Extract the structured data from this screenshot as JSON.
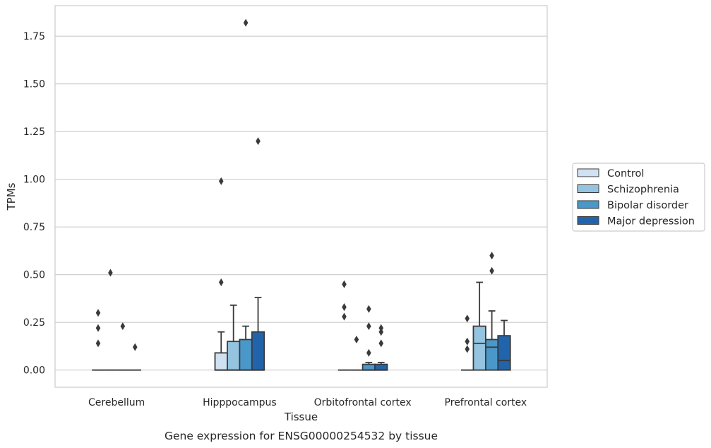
{
  "chart_data": {
    "type": "box",
    "xlabel": "Tissue",
    "ylabel": "TPMs",
    "caption": "Gene expression for ENSG00000254532 by tissue",
    "ylim": [
      -0.09,
      1.91
    ],
    "yticks": [
      0.0,
      0.25,
      0.5,
      0.75,
      1.0,
      1.25,
      1.5,
      1.75
    ],
    "ytick_labels": [
      "0.00",
      "0.25",
      "0.50",
      "0.75",
      "1.00",
      "1.25",
      "1.50",
      "1.75"
    ],
    "grid": "horizontal",
    "legend_position": "right",
    "categories": [
      "Cerebellum",
      "Hipppocampus",
      "Orbitofrontal cortex",
      "Prefrontal cortex"
    ],
    "series": [
      {
        "name": "Control",
        "color": "#d0e1f2",
        "boxes": [
          {
            "q1": 0.0,
            "median": 0.0,
            "q3": 0.0,
            "whislo": 0.0,
            "whishi": 0.0,
            "fliers": [
              0.3,
              0.22,
              0.14
            ]
          },
          {
            "q1": 0.0,
            "median": 0.0,
            "q3": 0.09,
            "whislo": 0.0,
            "whishi": 0.2,
            "fliers": [
              0.99,
              0.46
            ]
          },
          {
            "q1": 0.0,
            "median": 0.0,
            "q3": 0.0,
            "whislo": 0.0,
            "whishi": 0.0,
            "fliers": [
              0.45,
              0.33,
              0.28
            ]
          },
          {
            "q1": 0.0,
            "median": 0.0,
            "q3": 0.0,
            "whislo": 0.0,
            "whishi": 0.0,
            "fliers": [
              0.27,
              0.15,
              0.11
            ]
          }
        ]
      },
      {
        "name": "Schizophrenia",
        "color": "#94c4df",
        "boxes": [
          {
            "q1": 0.0,
            "median": 0.0,
            "q3": 0.0,
            "whislo": 0.0,
            "whishi": 0.0,
            "fliers": [
              0.51
            ]
          },
          {
            "q1": 0.0,
            "median": 0.0,
            "q3": 0.15,
            "whislo": 0.0,
            "whishi": 0.34,
            "fliers": []
          },
          {
            "q1": 0.0,
            "median": 0.0,
            "q3": 0.0,
            "whislo": 0.0,
            "whishi": 0.0,
            "fliers": [
              0.16
            ]
          },
          {
            "q1": 0.0,
            "median": 0.14,
            "q3": 0.23,
            "whislo": 0.0,
            "whishi": 0.46,
            "fliers": []
          }
        ]
      },
      {
        "name": "Bipolar disorder",
        "color": "#4a98c9",
        "boxes": [
          {
            "q1": 0.0,
            "median": 0.0,
            "q3": 0.0,
            "whislo": 0.0,
            "whishi": 0.0,
            "fliers": [
              0.23
            ]
          },
          {
            "q1": 0.0,
            "median": 0.0,
            "q3": 0.16,
            "whislo": 0.0,
            "whishi": 0.23,
            "fliers": [
              1.82
            ]
          },
          {
            "q1": 0.0,
            "median": 0.0,
            "q3": 0.03,
            "whislo": 0.0,
            "whishi": 0.04,
            "fliers": [
              0.32,
              0.23,
              0.09
            ]
          },
          {
            "q1": 0.0,
            "median": 0.12,
            "q3": 0.16,
            "whislo": 0.0,
            "whishi": 0.31,
            "fliers": [
              0.6,
              0.52
            ]
          }
        ]
      },
      {
        "name": "Major depression",
        "color": "#2164ab",
        "boxes": [
          {
            "q1": 0.0,
            "median": 0.0,
            "q3": 0.0,
            "whislo": 0.0,
            "whishi": 0.0,
            "fliers": [
              0.12
            ]
          },
          {
            "q1": 0.0,
            "median": 0.0,
            "q3": 0.2,
            "whislo": 0.0,
            "whishi": 0.38,
            "fliers": [
              1.2
            ]
          },
          {
            "q1": 0.0,
            "median": 0.0,
            "q3": 0.03,
            "whislo": 0.0,
            "whishi": 0.04,
            "fliers": [
              0.22,
              0.2,
              0.14
            ]
          },
          {
            "q1": 0.0,
            "median": 0.05,
            "q3": 0.18,
            "whislo": 0.0,
            "whishi": 0.26,
            "fliers": []
          }
        ]
      }
    ]
  }
}
